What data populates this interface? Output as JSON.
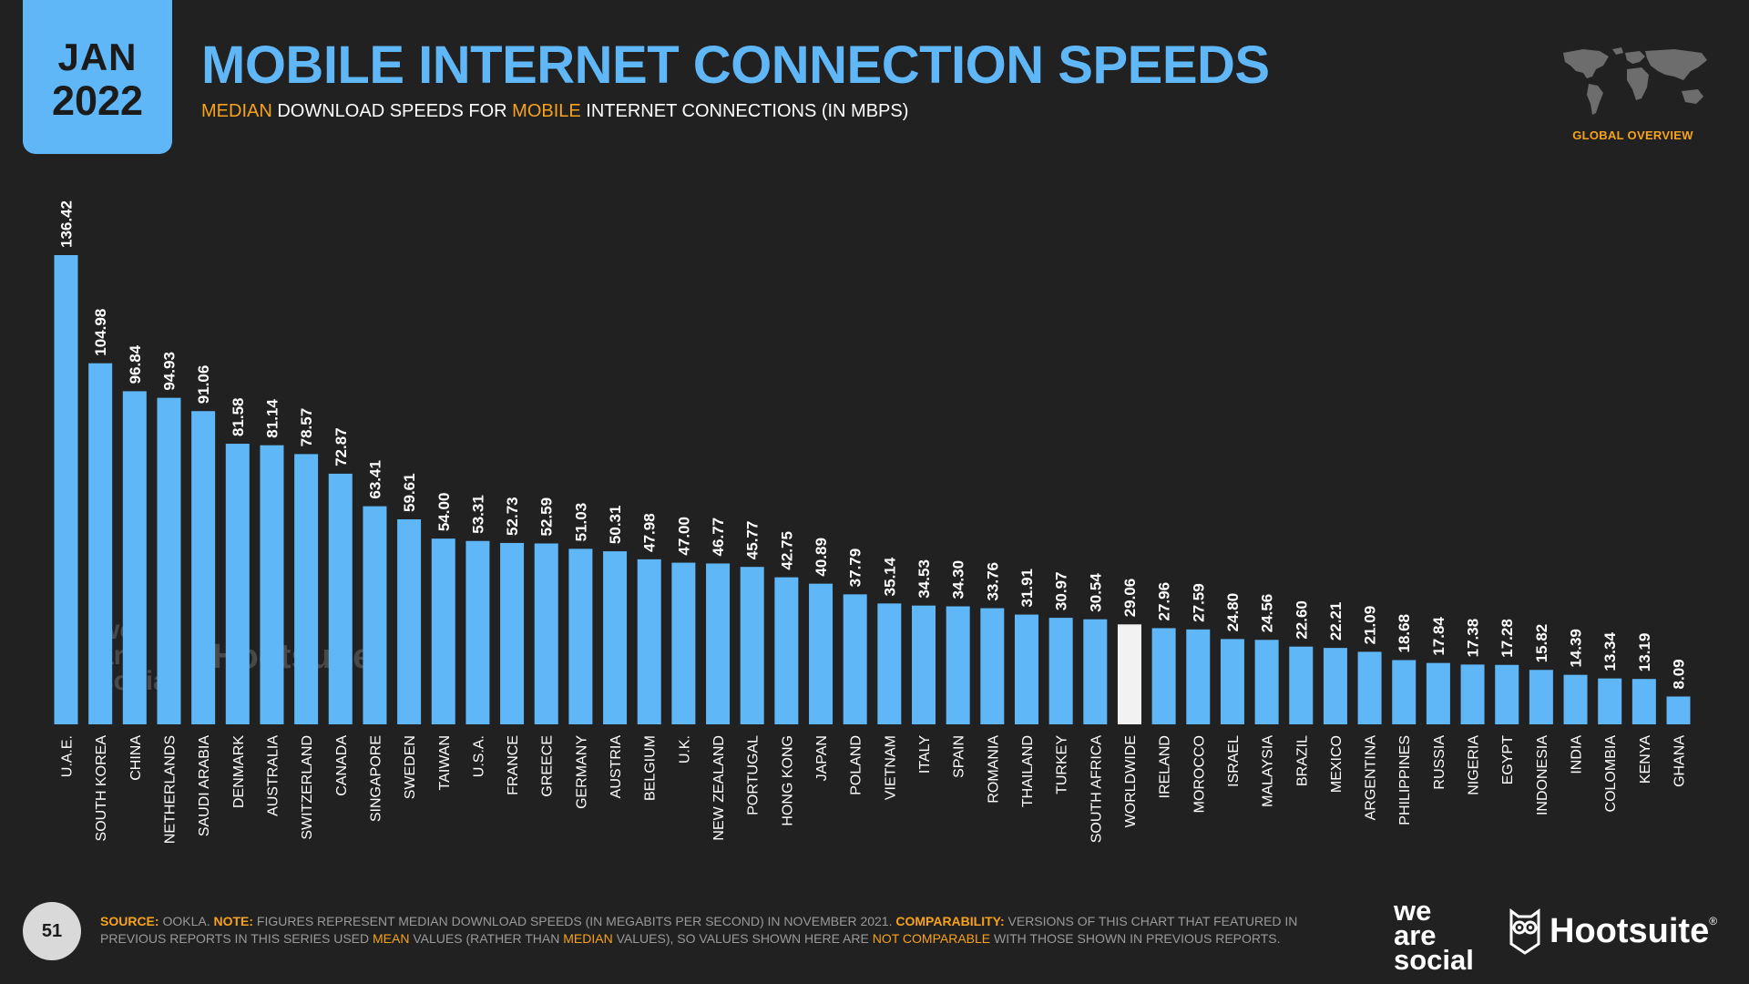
{
  "header": {
    "month": "JAN",
    "year": "2022",
    "title": "MOBILE INTERNET CONNECTION SPEEDS",
    "subtitle_parts": [
      "MEDIAN",
      " DOWNLOAD SPEEDS FOR ",
      "MOBILE",
      " INTERNET CONNECTIONS (IN MBPS)"
    ],
    "section_label": "GLOBAL OVERVIEW"
  },
  "colors": {
    "accent_blue": "#5fb7f7",
    "highlight_orange": "#f7a21b",
    "highlight_bar": "#f2f2f2",
    "background": "#212121"
  },
  "watermark": {
    "brand1": "we are social",
    "brand2": "Hootsuite"
  },
  "footer": {
    "page_number": "51",
    "source_label": "SOURCE:",
    "source_text": " OOKLA. ",
    "note_label": "NOTE:",
    "note_text": " FIGURES REPRESENT MEDIAN DOWNLOAD SPEEDS (IN MEGABITS PER SECOND) IN NOVEMBER 2021. ",
    "comp_label": "COMPARABILITY:",
    "comp_text_1": " VERSIONS OF THIS CHART THAT FEATURED IN PREVIOUS REPORTS IN THIS SERIES USED ",
    "comp_mean": "MEAN",
    "comp_text_2": " VALUES (RATHER THAN ",
    "comp_median": "MEDIAN",
    "comp_text_3": " VALUES), SO VALUES SHOWN HERE ARE ",
    "comp_not": "NOT COMPARABLE",
    "comp_text_4": " WITH THOSE SHOWN IN PREVIOUS REPORTS.",
    "brand_we": "we",
    "brand_are": "are",
    "brand_social": "social",
    "brand_hootsuite": "Hootsuite",
    "brand_reg": "®"
  },
  "chart_data": {
    "type": "bar",
    "orientation": "vertical",
    "value_labels_format": "0.00",
    "highlight_category": "WORLDWIDE",
    "categories": [
      "U.A.E.",
      "SOUTH KOREA",
      "CHINA",
      "NETHERLANDS",
      "SAUDI ARABIA",
      "DENMARK",
      "AUSTRALIA",
      "SWITZERLAND",
      "CANADA",
      "SINGAPORE",
      "SWEDEN",
      "TAIWAN",
      "U.S.A.",
      "FRANCE",
      "GREECE",
      "GERMANY",
      "AUSTRIA",
      "BELGIUM",
      "U.K.",
      "NEW ZEALAND",
      "PORTUGAL",
      "HONG KONG",
      "JAPAN",
      "POLAND",
      "VIETNAM",
      "ITALY",
      "SPAIN",
      "ROMANIA",
      "THAILAND",
      "TURKEY",
      "SOUTH AFRICA",
      "WORLDWIDE",
      "IRELAND",
      "MOROCCO",
      "ISRAEL",
      "MALAYSIA",
      "BRAZIL",
      "MEXICO",
      "ARGENTINA",
      "PHILIPPINES",
      "RUSSIA",
      "NIGERIA",
      "EGYPT",
      "INDONESIA",
      "INDIA",
      "COLOMBIA",
      "KENYA",
      "GHANA"
    ],
    "values": [
      136.42,
      104.98,
      96.84,
      94.93,
      91.06,
      81.58,
      81.14,
      78.57,
      72.87,
      63.41,
      59.61,
      54.0,
      53.31,
      52.73,
      52.59,
      51.03,
      50.31,
      47.98,
      47.0,
      46.77,
      45.77,
      42.75,
      40.89,
      37.79,
      35.14,
      34.53,
      34.3,
      33.76,
      31.91,
      30.97,
      30.54,
      29.06,
      27.96,
      27.59,
      24.8,
      24.56,
      22.6,
      22.21,
      21.09,
      18.68,
      17.84,
      17.38,
      17.28,
      15.82,
      14.39,
      13.34,
      13.19,
      8.09
    ],
    "ylim": [
      0,
      136.42
    ]
  }
}
